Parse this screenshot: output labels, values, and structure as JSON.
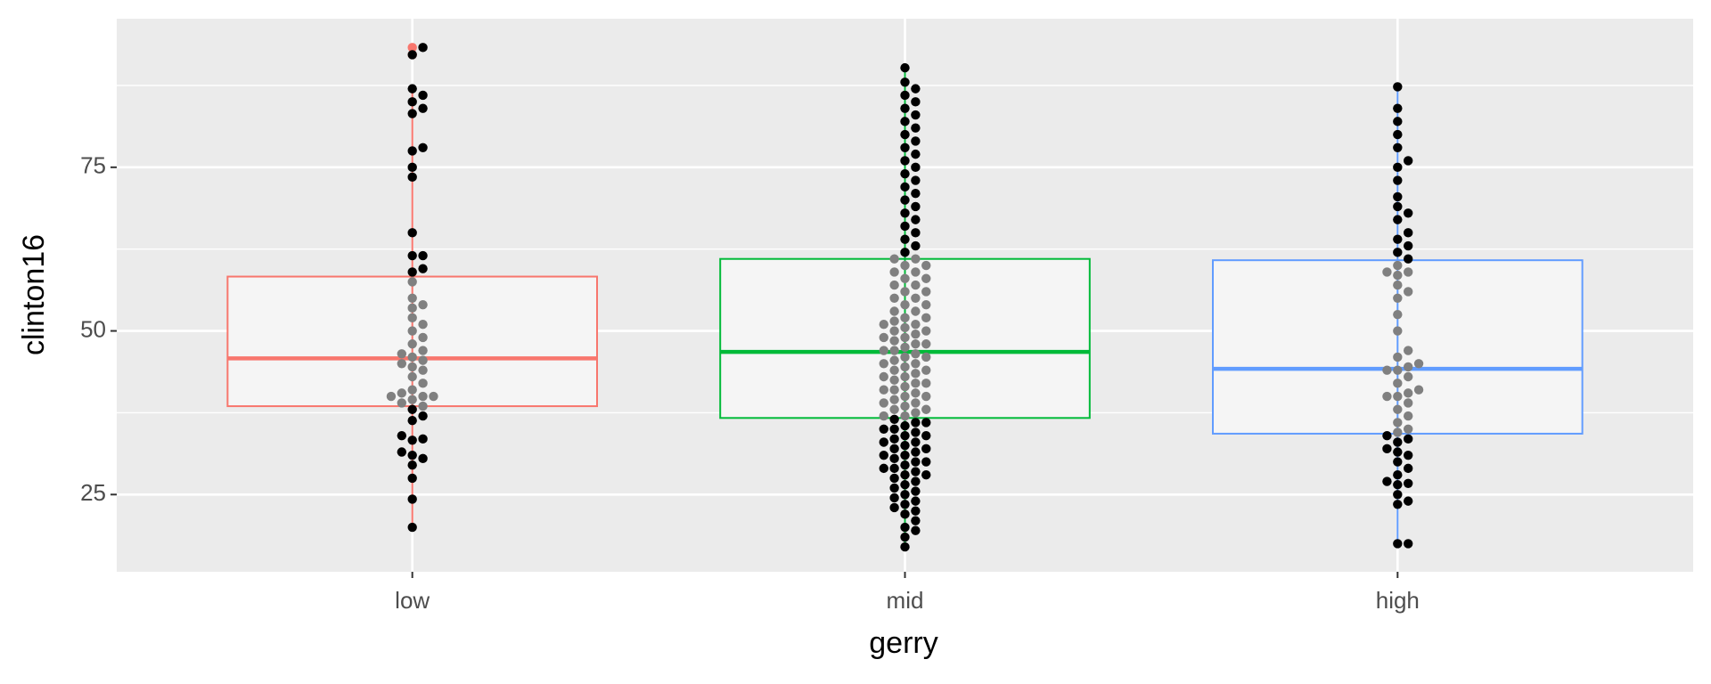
{
  "chart_data": {
    "type": "box",
    "x_label": "gerry",
    "y_label": "clinton16",
    "categories": [
      "low",
      "mid",
      "high"
    ],
    "ylim": [
      13.2,
      97.7
    ],
    "yticks": [
      25,
      50,
      75
    ],
    "grid": true,
    "point_color": "#000000",
    "inner_point_color": "#808080",
    "boxes": [
      {
        "color": "#f8766d",
        "lower": 20,
        "q1": 38.5,
        "median": 45.8,
        "q3": 58.3,
        "upper": 87.2,
        "outliers": [
          92.2,
          93.3
        ],
        "points": [
          20,
          24.3,
          27.5,
          29.5,
          30.5,
          31,
          31.5,
          33.3,
          33.5,
          34,
          36.3,
          37,
          38,
          38.5,
          39,
          39.5,
          40,
          40,
          40,
          40.5,
          41,
          42,
          43,
          44,
          44.5,
          45,
          45.5,
          46,
          46.5,
          47,
          48,
          49,
          50,
          51,
          52,
          53.5,
          54,
          55,
          57.5,
          59,
          59.5,
          61.5,
          61.5,
          65,
          73.5,
          75,
          77.5,
          78,
          83.2,
          84,
          85,
          86,
          87,
          92.2,
          93.3
        ]
      },
      {
        "color": "#00ba38",
        "lower": 17,
        "q1": 36.7,
        "median": 46.8,
        "q3": 61,
        "upper": 90.2,
        "outliers": [],
        "points": [
          17,
          18.5,
          19.5,
          20,
          21,
          22,
          22.5,
          23,
          23.5,
          24,
          24.5,
          25,
          25.5,
          26,
          26.5,
          27,
          27.5,
          28,
          28,
          28.5,
          29,
          29,
          29.5,
          30,
          30,
          30.5,
          31,
          31,
          31.5,
          32,
          32,
          32.5,
          33,
          33,
          33.5,
          34,
          34,
          34.5,
          35,
          35,
          35.5,
          36,
          36,
          36.5,
          37,
          37,
          37.5,
          38,
          38,
          38.5,
          39,
          39,
          39.5,
          40,
          40,
          40.5,
          41,
          41,
          41.5,
          42,
          42,
          42.5,
          43,
          43,
          43.5,
          44,
          44,
          44.5,
          45,
          45,
          45.5,
          46,
          46,
          46.5,
          47,
          47,
          47.5,
          48,
          48,
          48.5,
          49,
          49,
          49.5,
          50,
          50,
          50.5,
          51,
          51,
          51.5,
          52,
          52,
          53,
          53,
          54,
          54,
          55,
          55,
          56,
          56,
          57,
          57,
          58,
          58,
          59,
          59,
          60,
          60,
          61,
          61,
          62,
          63,
          64,
          65,
          66,
          67,
          68,
          69,
          70,
          71,
          72,
          73,
          74,
          75,
          76,
          77,
          78,
          79,
          80,
          81,
          82,
          83,
          84,
          85,
          86,
          87,
          88,
          90.2
        ]
      },
      {
        "color": "#619cff",
        "lower": 17.5,
        "q1": 34.3,
        "median": 44.2,
        "q3": 60.8,
        "upper": 87.3,
        "outliers": [],
        "points": [
          17.5,
          17.5,
          23.5,
          24,
          25,
          26.5,
          26.7,
          27,
          28,
          29,
          30,
          31,
          31.5,
          32,
          33,
          33.5,
          34,
          34.5,
          35,
          36,
          37,
          38,
          39,
          40,
          40,
          40.5,
          41,
          42,
          43,
          44,
          44,
          44.5,
          45,
          46,
          47,
          50,
          52.5,
          55,
          56,
          57,
          58.5,
          59,
          59,
          60,
          61,
          62,
          63,
          64,
          65,
          67,
          68,
          69,
          70.5,
          73,
          75,
          76,
          78,
          80,
          82,
          84,
          87.3
        ]
      }
    ]
  }
}
